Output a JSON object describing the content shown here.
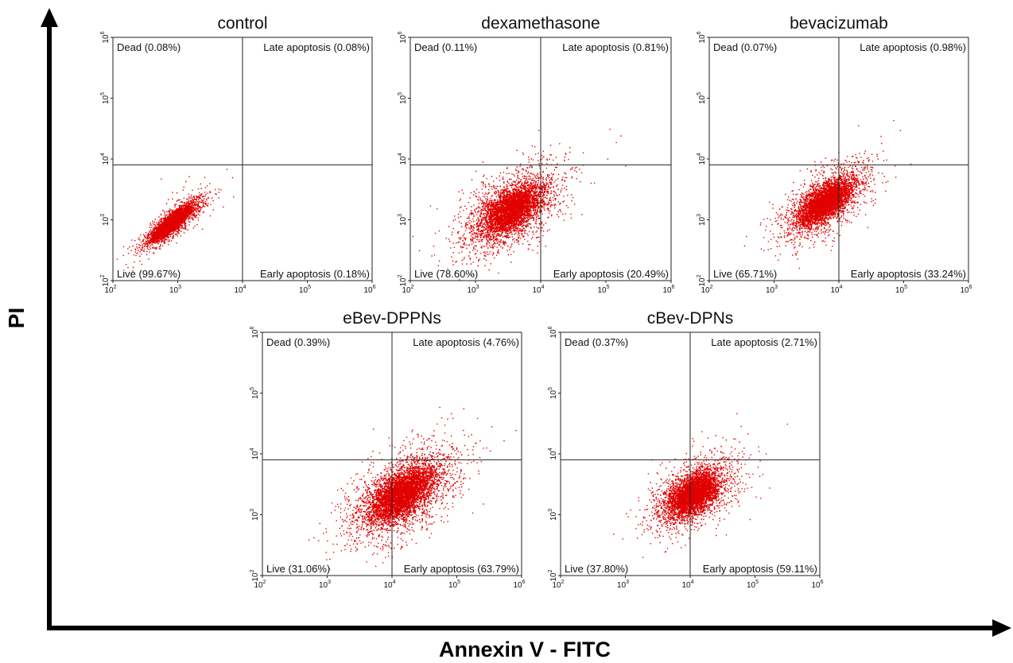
{
  "figure": {
    "x_axis_title": "Annexin V - FITC",
    "y_axis_title": "PI"
  },
  "chart_data": [
    {
      "type": "scatter",
      "title": "control",
      "x_scale": "log",
      "y_scale": "log",
      "xlim": [
        100,
        1000000
      ],
      "ylim": [
        100,
        1000000
      ],
      "x_ticks": [
        {
          "base": "10",
          "exp": "2"
        },
        {
          "base": "10",
          "exp": "3"
        },
        {
          "base": "10",
          "exp": "4"
        },
        {
          "base": "10",
          "exp": "5"
        },
        {
          "base": "10",
          "exp": "6"
        }
      ],
      "y_ticks": [
        {
          "base": "10",
          "exp": "2"
        },
        {
          "base": "10",
          "exp": "3"
        },
        {
          "base": "10",
          "exp": "4"
        },
        {
          "base": "10",
          "exp": "5"
        },
        {
          "base": "10",
          "exp": "6"
        }
      ],
      "gate": {
        "x": 10000,
        "y": 8000
      },
      "point_color": "#e00000",
      "quadrants": {
        "dead": "Dead (0.08%)",
        "late": "Late apoptosis (0.08%)",
        "live": "Live (99.67%)",
        "early": "Early apoptosis (0.18%)"
      },
      "population": {
        "center_x": 800,
        "center_y": 900,
        "spread": 0.25,
        "correlation": 0.85,
        "count": 1400,
        "density": "high"
      }
    },
    {
      "type": "scatter",
      "title": "dexamethasone",
      "x_scale": "log",
      "y_scale": "log",
      "xlim": [
        100,
        1000000
      ],
      "ylim": [
        100,
        1000000
      ],
      "x_ticks": [
        {
          "base": "10",
          "exp": "2"
        },
        {
          "base": "10",
          "exp": "3"
        },
        {
          "base": "10",
          "exp": "4"
        },
        {
          "base": "10",
          "exp": "5"
        },
        {
          "base": "10",
          "exp": "6"
        }
      ],
      "y_ticks": [
        {
          "base": "10",
          "exp": "2"
        },
        {
          "base": "10",
          "exp": "3"
        },
        {
          "base": "10",
          "exp": "4"
        },
        {
          "base": "10",
          "exp": "5"
        },
        {
          "base": "10",
          "exp": "6"
        }
      ],
      "gate": {
        "x": 10000,
        "y": 8000
      },
      "point_color": "#e00000",
      "quadrants": {
        "dead": "Dead (0.11%)",
        "late": "Late apoptosis (0.81%)",
        "live": "Live (78.60%)",
        "early": "Early apoptosis (20.49%)"
      },
      "population": {
        "center_x": 3500,
        "center_y": 1500,
        "spread": 0.42,
        "correlation": 0.55,
        "count": 1600,
        "density": "high"
      }
    },
    {
      "type": "scatter",
      "title": "bevacizumab",
      "x_scale": "log",
      "y_scale": "log",
      "xlim": [
        100,
        1000000
      ],
      "ylim": [
        100,
        1000000
      ],
      "x_ticks": [
        {
          "base": "10",
          "exp": "2"
        },
        {
          "base": "10",
          "exp": "3"
        },
        {
          "base": "10",
          "exp": "4"
        },
        {
          "base": "10",
          "exp": "5"
        },
        {
          "base": "10",
          "exp": "6"
        }
      ],
      "y_ticks": [
        {
          "base": "10",
          "exp": "2"
        },
        {
          "base": "10",
          "exp": "3"
        },
        {
          "base": "10",
          "exp": "4"
        },
        {
          "base": "10",
          "exp": "5"
        },
        {
          "base": "10",
          "exp": "6"
        }
      ],
      "gate": {
        "x": 10000,
        "y": 8000
      },
      "point_color": "#e00000",
      "quadrants": {
        "dead": "Dead (0.07%)",
        "late": "Late apoptosis (0.98%)",
        "live": "Live (65.71%)",
        "early": "Early apoptosis (33.24%)"
      },
      "population": {
        "center_x": 6000,
        "center_y": 2000,
        "spread": 0.36,
        "correlation": 0.65,
        "count": 1600,
        "density": "high"
      }
    },
    {
      "type": "scatter",
      "title": "eBev-DPPNs",
      "x_scale": "log",
      "y_scale": "log",
      "xlim": [
        100,
        1000000
      ],
      "ylim": [
        100,
        1000000
      ],
      "x_ticks": [
        {
          "base": "10",
          "exp": "2"
        },
        {
          "base": "10",
          "exp": "3"
        },
        {
          "base": "10",
          "exp": "4"
        },
        {
          "base": "10",
          "exp": "5"
        },
        {
          "base": "10",
          "exp": "6"
        }
      ],
      "y_ticks": [
        {
          "base": "10",
          "exp": "2"
        },
        {
          "base": "10",
          "exp": "3"
        },
        {
          "base": "10",
          "exp": "4"
        },
        {
          "base": "10",
          "exp": "5"
        },
        {
          "base": "10",
          "exp": "6"
        }
      ],
      "gate": {
        "x": 10000,
        "y": 8000
      },
      "point_color": "#e00000",
      "quadrants": {
        "dead": "Dead (0.39%)",
        "late": "Late apoptosis (4.76%)",
        "live": "Live (31.06%)",
        "early": "Early apoptosis (63.79%)"
      },
      "population": {
        "center_x": 14000,
        "center_y": 2200,
        "spread": 0.45,
        "correlation": 0.55,
        "count": 1900,
        "density": "high"
      }
    },
    {
      "type": "scatter",
      "title": "cBev-DPNs",
      "x_scale": "log",
      "y_scale": "log",
      "xlim": [
        100,
        1000000
      ],
      "ylim": [
        100,
        1000000
      ],
      "x_ticks": [
        {
          "base": "10",
          "exp": "2"
        },
        {
          "base": "10",
          "exp": "3"
        },
        {
          "base": "10",
          "exp": "4"
        },
        {
          "base": "10",
          "exp": "5"
        },
        {
          "base": "10",
          "exp": "6"
        }
      ],
      "y_ticks": [
        {
          "base": "10",
          "exp": "2"
        },
        {
          "base": "10",
          "exp": "3"
        },
        {
          "base": "10",
          "exp": "4"
        },
        {
          "base": "10",
          "exp": "5"
        },
        {
          "base": "10",
          "exp": "6"
        }
      ],
      "gate": {
        "x": 10000,
        "y": 8000
      },
      "point_color": "#e00000",
      "quadrants": {
        "dead": "Dead (0.37%)",
        "late": "Late apoptosis (2.71%)",
        "live": "Live (37.80%)",
        "early": "Early apoptosis (59.11%)"
      },
      "population": {
        "center_x": 11000,
        "center_y": 2200,
        "spread": 0.35,
        "correlation": 0.5,
        "count": 1600,
        "density": "high"
      }
    }
  ]
}
